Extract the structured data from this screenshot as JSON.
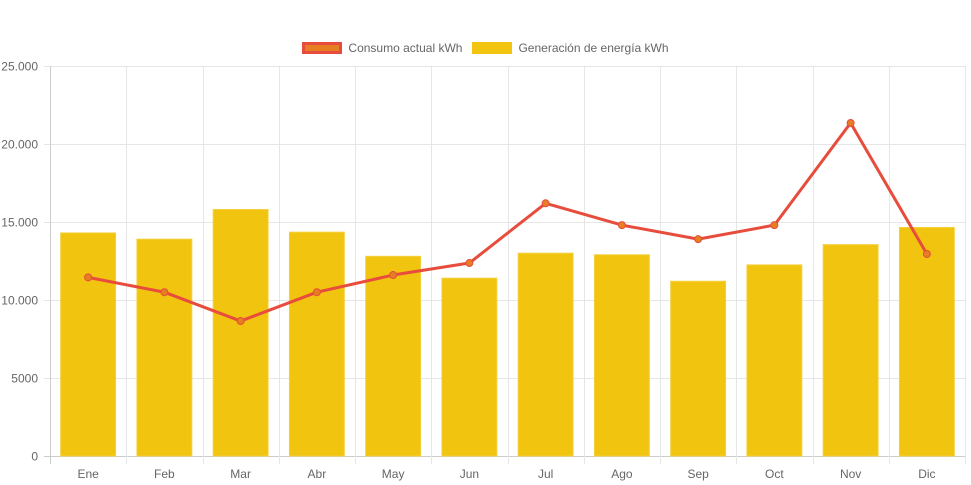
{
  "chart_data": {
    "type": "bar",
    "title": "",
    "xlabel": "",
    "ylabel": "",
    "categories": [
      "Ene",
      "Feb",
      "Mar",
      "Abr",
      "May",
      "Jun",
      "Jul",
      "Ago",
      "Sep",
      "Oct",
      "Nov",
      "Dic"
    ],
    "ylim": [
      0,
      25000
    ],
    "yticks": [
      0,
      5000,
      10000,
      15000,
      20000,
      25000
    ],
    "ytick_labels": [
      "0",
      "5000",
      "10.000",
      "15.000",
      "20.000",
      "25.000"
    ],
    "grid": true,
    "legend_position": "top-center",
    "series": [
      {
        "name": "Consumo actual kWh",
        "type": "line",
        "color": "#e74c3c",
        "point_color": "#e67e22",
        "values": [
          11450,
          10500,
          8650,
          10500,
          11600,
          12370,
          16200,
          14800,
          13900,
          14800,
          21350,
          12950
        ]
      },
      {
        "name": "Generación de energía kWh",
        "type": "bar",
        "color": "#f1c40f",
        "values": [
          14300,
          13900,
          15800,
          14350,
          12800,
          11400,
          13000,
          12900,
          11200,
          12250,
          13550,
          14650
        ]
      }
    ]
  },
  "legend": {
    "items": [
      {
        "label": "Consumo actual kWh",
        "fill": "#e67e22",
        "border": "#e74c3c"
      },
      {
        "label": "Generación de energía kWh",
        "fill": "#f1c40f",
        "border": "#f1c40f"
      }
    ]
  }
}
